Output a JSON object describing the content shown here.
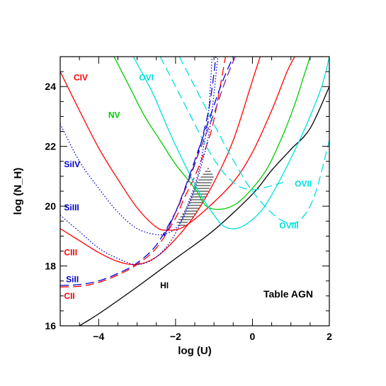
{
  "chart_data": {
    "type": "line",
    "title": "",
    "xlabel": "log (U)",
    "ylabel": "log (N_H)",
    "xlim": [
      -5,
      2
    ],
    "ylim": [
      16,
      25
    ],
    "grid": false,
    "x_ticks": [
      -4,
      -2,
      0,
      2
    ],
    "x_tick_labels": [
      "−4",
      "−2",
      "0",
      "2"
    ],
    "y_ticks": [
      16,
      18,
      20,
      22,
      24
    ],
    "y_tick_labels": [
      "16",
      "18",
      "20",
      "22",
      "24"
    ],
    "annotation": "Table AGN",
    "colors": {
      "red": "#ff0000",
      "blue": "#0000cd",
      "green": "#00cc00",
      "cyan": "#00e0e0",
      "black": "#000000",
      "purple": "#8020a0"
    },
    "series": [
      {
        "name": "HI",
        "color": "#000000",
        "dash": "solid",
        "x": [
          -4.5,
          -4,
          -3,
          -2,
          -1,
          0,
          0.5,
          1,
          1.5,
          2.0
        ],
        "y": [
          16.0,
          16.4,
          17.3,
          18.25,
          19.2,
          20.4,
          21.2,
          21.9,
          22.6,
          24.0
        ]
      },
      {
        "name": "CII",
        "color": "#ff0000",
        "dash": "dashed",
        "x": [
          -5,
          -4.5,
          -4,
          -3.5,
          -3,
          -2.5,
          -2,
          -1.8,
          -1.5,
          -1.2,
          -1.0,
          -0.7
        ],
        "y": [
          17.3,
          17.32,
          17.45,
          17.7,
          18.05,
          18.6,
          19.6,
          20.2,
          21.0,
          22.0,
          22.9,
          25.0
        ]
      },
      {
        "name": "SiII",
        "color": "#0000cd",
        "dash": "dashed",
        "x": [
          -5,
          -4.5,
          -4,
          -3.5,
          -3,
          -2.5,
          -2,
          -1.8,
          -1.5,
          -1.3,
          -1.1,
          -0.95
        ],
        "y": [
          17.35,
          17.38,
          17.5,
          17.75,
          18.1,
          18.7,
          19.8,
          20.4,
          21.4,
          22.3,
          23.5,
          25.0
        ]
      },
      {
        "name": "CIII",
        "color": "#ff0000",
        "dash": "solid",
        "x": [
          -5,
          -4.5,
          -4,
          -3.5,
          -3,
          -2.5,
          -2,
          -1.5,
          -1,
          -0.5,
          0,
          0.2
        ],
        "y": [
          19.25,
          18.85,
          18.45,
          18.15,
          18.05,
          18.3,
          18.9,
          19.7,
          20.8,
          22.2,
          24.2,
          25.0
        ]
      },
      {
        "name": "SiIII",
        "color": "#0000cd",
        "dash": "dotted",
        "x": [
          -5,
          -4.5,
          -4,
          -3.5,
          -3,
          -2.5,
          -2,
          -1.5,
          -1.3,
          -1.15,
          -1.05
        ],
        "y": [
          19.7,
          19.15,
          18.6,
          18.25,
          18.05,
          18.3,
          19.1,
          20.7,
          21.8,
          23.0,
          25.0
        ]
      },
      {
        "name": "SiIV",
        "color": "#0000cd",
        "dash": "dotted",
        "x": [
          -5,
          -4.5,
          -4,
          -3.5,
          -3,
          -2.5,
          -2.2,
          -1.9,
          -1.6,
          -1.3,
          -1.1,
          -0.9
        ],
        "y": [
          22.75,
          21.5,
          20.6,
          19.8,
          19.25,
          19.05,
          19.1,
          19.4,
          20.2,
          21.5,
          22.7,
          25.0
        ]
      },
      {
        "name": "CIV",
        "color": "#ff0000",
        "dash": "solid",
        "x": [
          -5,
          -4.5,
          -4,
          -3.5,
          -3,
          -2.5,
          -2.2,
          -1.8,
          -1.2,
          -0.5,
          0,
          0.5,
          0.9,
          1.1
        ],
        "y": [
          24.5,
          23.2,
          21.95,
          20.9,
          19.95,
          19.3,
          19.2,
          19.3,
          19.9,
          20.8,
          21.8,
          23.2,
          24.5,
          25.0
        ]
      },
      {
        "name": "NV",
        "color": "#00cc00",
        "dash": "solid",
        "x": [
          -3.6,
          -3.2,
          -2.8,
          -2.4,
          -2,
          -1.5,
          -1.2,
          -0.8,
          -0.4,
          0,
          0.4,
          0.8,
          1.1,
          1.3,
          1.5
        ],
        "y": [
          25.0,
          24.0,
          23.0,
          22.2,
          21.4,
          20.6,
          20.0,
          19.9,
          20.1,
          20.6,
          21.3,
          22.4,
          23.4,
          24.2,
          25.0
        ]
      },
      {
        "name": "OVI",
        "color": "#00e0e0",
        "dash": "solid",
        "x": [
          -3.1,
          -2.6,
          -2.2,
          -1.8,
          -1.4,
          -1,
          -0.7,
          -0.3,
          0.2,
          0.6,
          1.0,
          1.4,
          1.8,
          2.0
        ],
        "y": [
          25.0,
          23.8,
          22.6,
          21.5,
          20.5,
          19.7,
          19.3,
          19.3,
          19.8,
          20.6,
          21.6,
          22.7,
          24.0,
          25.0
        ]
      },
      {
        "name": "OVII",
        "color": "#00e0e0",
        "dash": "dashed",
        "x": [
          -2.4,
          -2,
          -1.6,
          -1.2,
          -0.8,
          -0.4,
          0,
          0.4,
          0.8
        ],
        "y": [
          25.0,
          24.0,
          23.0,
          22.0,
          21.2,
          20.7,
          20.55,
          20.65,
          20.8
        ]
      },
      {
        "name": "OVIII",
        "color": "#00e0e0",
        "dash": "dashed",
        "x": [
          -1.9,
          -1.5,
          -1.1,
          -0.7,
          -0.3,
          0,
          0.4,
          0.8,
          1.2,
          1.6,
          2.0
        ],
        "y": [
          25.0,
          24.0,
          23.0,
          22.0,
          21.1,
          20.5,
          19.9,
          19.5,
          19.5,
          20.3,
          22.2
        ]
      },
      {
        "name": "",
        "color": "#0000cd",
        "dash": "dashed",
        "x": [
          -2.3,
          -2,
          -1.7,
          -1.4,
          -1.1,
          -0.8,
          -0.5
        ],
        "y": [
          19.0,
          19.8,
          20.8,
          21.9,
          23.0,
          24.1,
          25.0
        ]
      },
      {
        "name": "",
        "color": "#8020a0",
        "dash": "dashed",
        "x": [
          -2.2,
          -1.9,
          -1.6,
          -1.3,
          -1.0,
          -0.7,
          -0.45
        ],
        "y": [
          19.2,
          20.1,
          21.1,
          22.1,
          23.1,
          24.2,
          25.0
        ]
      }
    ],
    "shaded_region": {
      "x": [
        -2.0,
        -1.7,
        -1.45,
        -1.15,
        -1.0,
        -1.2,
        -1.5,
        -1.8
      ],
      "y": [
        19.4,
        20.0,
        20.8,
        21.3,
        21.0,
        20.3,
        19.7,
        19.3
      ]
    },
    "labels": [
      {
        "text": "CIV",
        "x": -4.65,
        "y": 24.3,
        "color": "#ff0000"
      },
      {
        "text": "NV",
        "x": -3.75,
        "y": 23.05,
        "color": "#00cc00"
      },
      {
        "text": "OVI",
        "x": -2.95,
        "y": 24.3,
        "color": "#00e0e0"
      },
      {
        "text": "SiIV",
        "x": -4.9,
        "y": 21.4,
        "color": "#0000cd"
      },
      {
        "text": "SiIII",
        "x": -4.9,
        "y": 19.95,
        "color": "#0000cd"
      },
      {
        "text": "CIII",
        "x": -4.9,
        "y": 18.45,
        "color": "#ff0000"
      },
      {
        "text": "SiII",
        "x": -4.85,
        "y": 17.55,
        "color": "#0000cd"
      },
      {
        "text": "CII",
        "x": -4.9,
        "y": 17.0,
        "color": "#ff0000"
      },
      {
        "text": "HI",
        "x": -2.4,
        "y": 17.35,
        "color": "#000000"
      },
      {
        "text": "OVII",
        "x": 1.1,
        "y": 20.75,
        "color": "#00e0e0"
      },
      {
        "text": "OVIII",
        "x": 0.7,
        "y": 19.35,
        "color": "#00e0e0"
      }
    ]
  }
}
